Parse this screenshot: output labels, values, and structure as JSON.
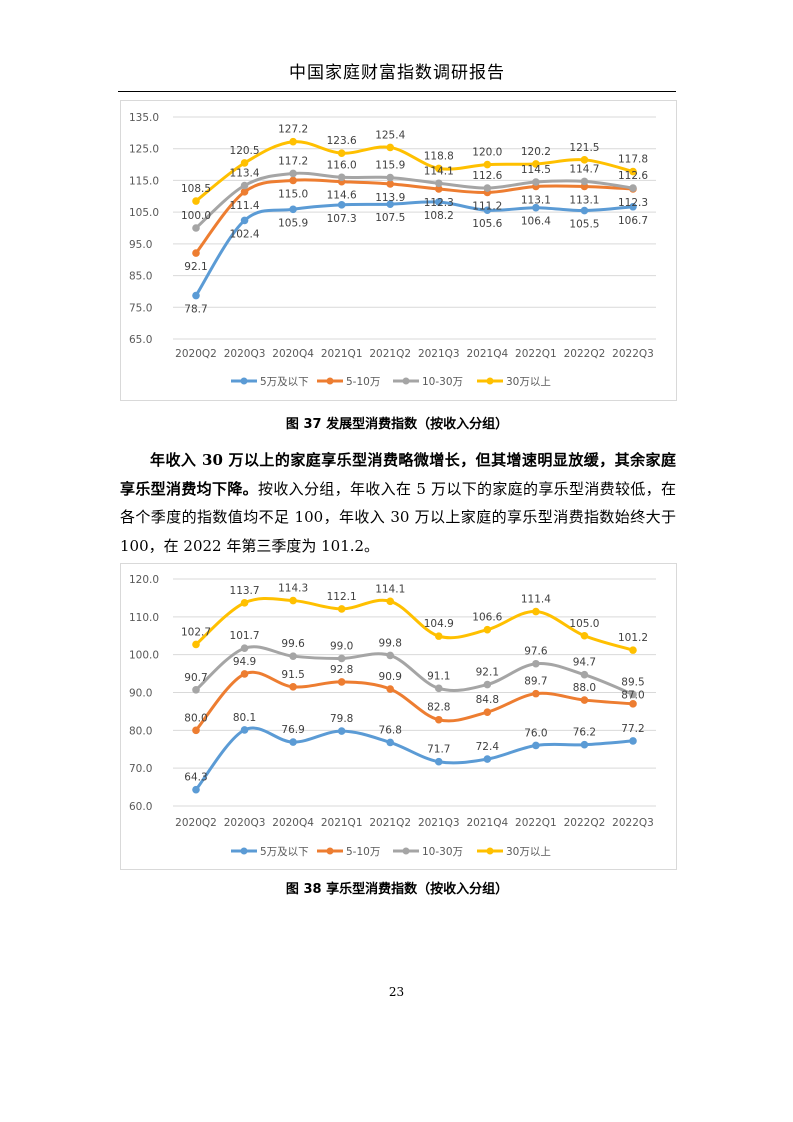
{
  "header": {
    "title": "中国家庭财富指数调研报告"
  },
  "colors": {
    "5万及以下": "#5b9bd5",
    "5-10万": "#ed7d31",
    "10-30万": "#a5a5a5",
    "30万以上": "#ffc000",
    "grid": "#d9d9d9",
    "tick": "#595959"
  },
  "captions": {
    "fig37": "图 37 发展型消费指数（按收入分组）",
    "fig38": "图 38 享乐型消费指数（按收入分组）"
  },
  "paragraph": {
    "bold": "年收入 30 万以上的家庭享乐型消费略微增长，但其增速明显放缓，其余家庭享乐型消费均下降。",
    "normal": "按收入分组，年收入在 5 万以下的家庭的享乐型消费较低，在各个季度的指数值均不足 100，年收入 30 万以上家庭的享乐型消费指数始终大于 100，在 2022 年第三季度为 101.2。"
  },
  "page_number": "23",
  "chart_data": [
    {
      "type": "line",
      "title": "发展型消费指数（按收入分组）",
      "categories": [
        "2020Q2",
        "2020Q3",
        "2020Q4",
        "2021Q1",
        "2021Q2",
        "2021Q3",
        "2021Q4",
        "2022Q1",
        "2022Q2",
        "2022Q3"
      ],
      "ylim": [
        65,
        135
      ],
      "yticks": [
        "65.0",
        "75.0",
        "85.0",
        "95.0",
        "105.0",
        "115.0",
        "125.0",
        "135.0"
      ],
      "grid": true,
      "legend": "bottom",
      "series": [
        {
          "name": "5万及以下",
          "values": [
            78.7,
            102.4,
            105.9,
            107.3,
            107.5,
            108.2,
            105.6,
            106.4,
            105.5,
            106.7
          ]
        },
        {
          "name": "5-10万",
          "values": [
            92.1,
            111.4,
            115.0,
            114.6,
            113.9,
            112.3,
            111.2,
            113.1,
            113.1,
            112.3
          ]
        },
        {
          "name": "10-30万",
          "values": [
            100.0,
            113.4,
            117.2,
            116.0,
            115.9,
            114.1,
            112.6,
            114.5,
            114.7,
            112.6
          ]
        },
        {
          "name": "30万以上",
          "values": [
            108.5,
            120.5,
            127.2,
            123.6,
            125.4,
            118.8,
            120.0,
            120.2,
            121.5,
            117.8
          ]
        }
      ]
    },
    {
      "type": "line",
      "title": "享乐型消费指数（按收入分组）",
      "categories": [
        "2020Q2",
        "2020Q3",
        "2020Q4",
        "2021Q1",
        "2021Q2",
        "2021Q3",
        "2021Q4",
        "2022Q1",
        "2022Q2",
        "2022Q3"
      ],
      "ylim": [
        60,
        120
      ],
      "yticks": [
        "60.0",
        "70.0",
        "80.0",
        "90.0",
        "100.0",
        "110.0",
        "120.0"
      ],
      "grid": true,
      "legend": "bottom",
      "series": [
        {
          "name": "5万及以下",
          "values": [
            64.3,
            80.1,
            76.9,
            79.8,
            76.8,
            71.7,
            72.4,
            76.0,
            76.2,
            77.2
          ]
        },
        {
          "name": "5-10万",
          "values": [
            80.0,
            94.9,
            91.5,
            92.8,
            90.9,
            82.8,
            84.8,
            89.7,
            88.0,
            87.0
          ]
        },
        {
          "name": "10-30万",
          "values": [
            90.7,
            101.7,
            99.6,
            99.0,
            99.8,
            91.1,
            92.1,
            97.6,
            94.7,
            89.5
          ]
        },
        {
          "name": "30万以上",
          "values": [
            102.7,
            113.7,
            114.3,
            112.1,
            114.1,
            104.9,
            106.6,
            111.4,
            105.0,
            101.2
          ]
        }
      ]
    }
  ]
}
